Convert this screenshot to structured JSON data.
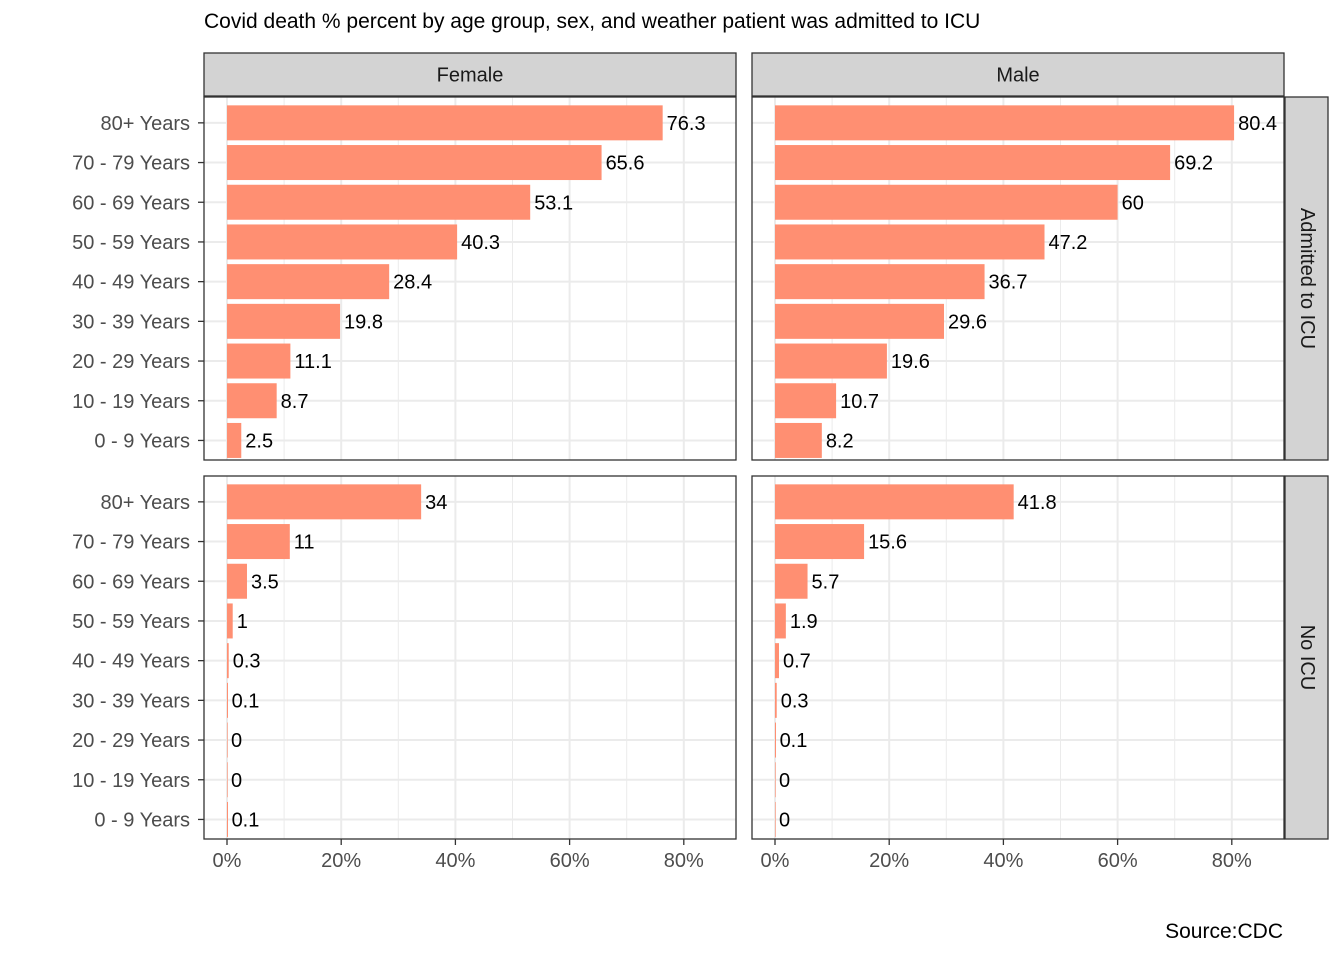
{
  "chart_data": {
    "type": "bar",
    "orientation": "horizontal",
    "title": "Covid death % percent by age group, sex, and weather patient was admitted to ICU",
    "caption": "Source:CDC",
    "bar_color": "#FF8F72",
    "strip_fill": "#D3D3D3",
    "grid_color": "#EBEBEB",
    "categories": [
      "80+ Years",
      "70 - 79 Years",
      "60 - 69 Years",
      "50 - 59 Years",
      "40 - 49 Years",
      "30 - 39 Years",
      "20 - 29 Years",
      "10 - 19 Years",
      "0 - 9 Years"
    ],
    "xlim": [
      0,
      90
    ],
    "x_ticks": [
      0,
      20,
      40,
      60,
      80
    ],
    "x_tick_labels": [
      "0%",
      "20%",
      "40%",
      "60%",
      "80%"
    ],
    "facet_columns": [
      "Female",
      "Male"
    ],
    "facet_rows": [
      "Admitted to ICU",
      "No ICU"
    ],
    "panels": [
      {
        "row": "Admitted to ICU",
        "column": "Female",
        "values": [
          76.3,
          65.6,
          53.1,
          40.3,
          28.4,
          19.8,
          11.1,
          8.7,
          2.5
        ],
        "labels": [
          "76.3",
          "65.6",
          "53.1",
          "40.3",
          "28.4",
          "19.8",
          "11.1",
          "8.7",
          "2.5"
        ]
      },
      {
        "row": "Admitted to ICU",
        "column": "Male",
        "values": [
          80.4,
          69.2,
          60,
          47.2,
          36.7,
          29.6,
          19.6,
          10.7,
          8.2
        ],
        "labels": [
          "80.4",
          "69.2",
          "60",
          "47.2",
          "36.7",
          "29.6",
          "19.6",
          "10.7",
          "8.2"
        ]
      },
      {
        "row": "No ICU",
        "column": "Female",
        "values": [
          34,
          11,
          3.5,
          1,
          0.3,
          0.1,
          0,
          0,
          0.1
        ],
        "labels": [
          "34",
          "11",
          "3.5",
          "1",
          "0.3",
          "0.1",
          "0",
          "0",
          "0.1"
        ]
      },
      {
        "row": "No ICU",
        "column": "Male",
        "values": [
          41.8,
          15.6,
          5.7,
          1.9,
          0.7,
          0.3,
          0.1,
          0,
          0
        ],
        "labels": [
          "41.8",
          "15.6",
          "5.7",
          "1.9",
          "0.7",
          "0.3",
          "0.1",
          "0",
          "0"
        ]
      }
    ]
  }
}
